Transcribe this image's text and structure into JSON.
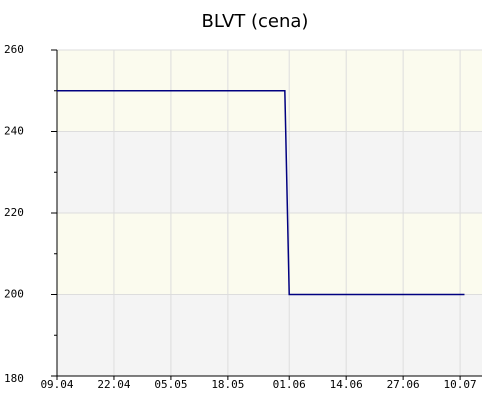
{
  "chart_data": {
    "type": "line",
    "title": "BLVT (cena)",
    "x": [
      "09.04",
      "31.05",
      "01.06",
      "11.07"
    ],
    "series": [
      {
        "name": "cena",
        "color": "#000080",
        "values": [
          250,
          250,
          200,
          200
        ]
      }
    ],
    "xlim": [
      "09.04",
      "15.07"
    ],
    "xticks": [
      "09.04",
      "22.04",
      "05.05",
      "18.05",
      "01.06",
      "14.06",
      "27.06",
      "10.07"
    ],
    "ylim": [
      180,
      260
    ],
    "yticks": [
      180,
      200,
      220,
      240,
      260
    ],
    "grid": true
  }
}
